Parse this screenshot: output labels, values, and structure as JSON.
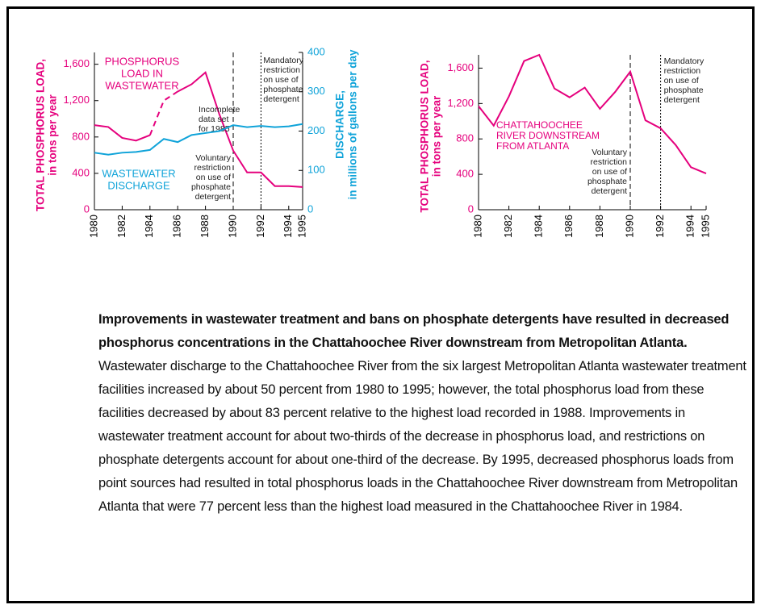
{
  "chart_data": [
    {
      "type": "line",
      "x": [
        1980,
        1981,
        1982,
        1983,
        1984,
        1985,
        1986,
        1987,
        1988,
        1989,
        1990,
        1991,
        1992,
        1993,
        1994,
        1995
      ],
      "xlim": [
        1980,
        1995
      ],
      "xticks": [
        1980,
        1982,
        1984,
        1986,
        1988,
        1990,
        1992,
        1994,
        1995
      ],
      "ylim": [
        0,
        1730
      ],
      "yticks": [
        0,
        400,
        800,
        {
          "value": 1200,
          "label": "1,200"
        },
        {
          "value": 1600,
          "label": "1,600"
        }
      ],
      "y2lim": [
        0,
        400
      ],
      "y2ticks": [
        0,
        100,
        200,
        300,
        400
      ],
      "ylabel": [
        "TOTAL PHOSPHORUS LOAD,",
        "in tons per year"
      ],
      "y2label": [
        "DISCHARGE,",
        "in millions of gallons per day"
      ],
      "series": [
        {
          "name": [
            "PHOSPHORUS",
            "LOAD IN",
            "WASTEWATER"
          ],
          "color": "#e5007d",
          "dashed": false,
          "values": [
            930,
            910,
            790,
            760,
            820,
            null,
            1300,
            1380,
            1510,
            1050,
            650,
            410,
            410,
            260,
            260,
            250
          ]
        },
        {
          "name": [
            "Incomplete",
            "data set",
            "for 1985"
          ],
          "color": "#e5007d",
          "dashed": true,
          "values": [
            null,
            null,
            null,
            null,
            820,
            1200,
            1300,
            null,
            null,
            null,
            null,
            null,
            null,
            null,
            null,
            null
          ]
        },
        {
          "name": [
            "WASTEWATER",
            "DISCHARGE"
          ],
          "color": "#0fa3d9",
          "dashed": false,
          "axis": "y2",
          "values": [
            145,
            140,
            145,
            147,
            152,
            180,
            172,
            190,
            195,
            200,
            215,
            210,
            213,
            210,
            212,
            218
          ]
        }
      ],
      "vlines": [
        {
          "x": 1990,
          "style": "dashed",
          "label": [
            "Voluntary",
            "restriction",
            "on use of",
            "phosphate",
            "detergent"
          ]
        },
        {
          "x": 1992,
          "style": "dotted",
          "label": [
            "Mandatory",
            "restriction",
            "on use of",
            "phosphate",
            "detergent"
          ]
        }
      ]
    },
    {
      "type": "line",
      "x": [
        1980,
        1981,
        1982,
        1983,
        1984,
        1985,
        1986,
        1987,
        1988,
        1989,
        1990,
        1991,
        1992,
        1993,
        1994,
        1995
      ],
      "xlim": [
        1980,
        1995
      ],
      "xticks": [
        1980,
        1982,
        1984,
        1986,
        1988,
        1990,
        1992,
        1994,
        1995
      ],
      "ylim": [
        0,
        1750
      ],
      "yticks": [
        0,
        400,
        800,
        {
          "value": 1200,
          "label": "1,200"
        },
        {
          "value": 1600,
          "label": "1,600"
        }
      ],
      "ylabel": [
        "TOTAL PHOSPHORUS LOAD,",
        "in tons per year"
      ],
      "series": [
        {
          "name": [
            "CHATTAHOOCHEE",
            "RIVER DOWNSTREAM",
            "FROM ATLANTA"
          ],
          "color": "#e5007d",
          "dashed": false,
          "values": [
            1170,
            950,
            1280,
            1680,
            1750,
            1370,
            1270,
            1380,
            1140,
            1330,
            1560,
            1010,
            920,
            730,
            480,
            410
          ]
        }
      ],
      "vlines": [
        {
          "x": 1990,
          "style": "dashed",
          "label": [
            "Voluntary",
            "restriction",
            "on use of",
            "phosphate",
            "detergent"
          ]
        },
        {
          "x": 1992,
          "style": "dotted",
          "label": [
            "Mandatory",
            "restriction",
            "on use of",
            "phosphate",
            "detergent"
          ]
        }
      ]
    }
  ],
  "caption": {
    "bold": "Improvements in wastewater treatment and bans on phosphate detergents have resulted in decreased phosphorus concentrations in the Chattahoochee River downstream from Metropolitan Atlanta.",
    "text": "Wastewater discharge to the Chattahoochee River from the six largest Metropolitan Atlanta wastewater treatment facilities increased by about 50 percent from 1980 to 1995; however, the total phosphorus load from these facilities decreased by about 83 percent relative to the highest load recorded in 1988. Improvements in wastewater treatment account for about two-thirds of the decrease in phosphorus load, and restrictions on phosphate detergents account for about one-third of the decrease. By 1995, decreased phosphorus loads from point sources had resulted in total phosphorus loads in the Chattahoochee River downstream from Metropolitan Atlanta that were 77 percent less than the highest load measured in the Chattahoochee River in 1984."
  }
}
